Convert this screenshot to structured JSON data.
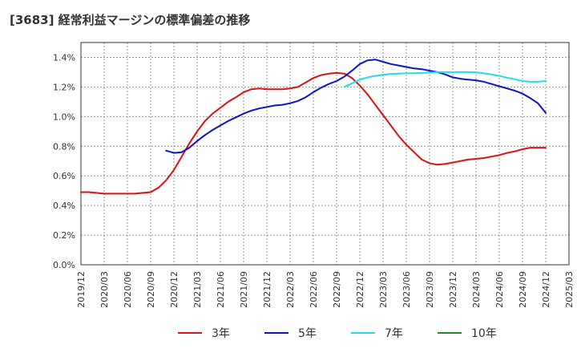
{
  "chart_data": {
    "type": "line",
    "title": "[3683]  経常利益マージンの標準偏差の推移",
    "xlabel": "",
    "ylabel": "",
    "x_tick_labels": [
      "2019/12",
      "2020/03",
      "2020/06",
      "2020/09",
      "2020/12",
      "2021/03",
      "2021/06",
      "2021/09",
      "2021/12",
      "2022/03",
      "2022/06",
      "2022/09",
      "2022/12",
      "2023/03",
      "2023/06",
      "2023/09",
      "2023/12",
      "2024/03",
      "2024/06",
      "2024/09",
      "2024/12",
      "2025/03"
    ],
    "y_tick_labels": [
      "0.0%",
      "0.2%",
      "0.4%",
      "0.6%",
      "0.8%",
      "1.0%",
      "1.2%",
      "1.4%"
    ],
    "ylim": [
      0,
      1.5
    ],
    "grid": true,
    "legend_position": "bottom",
    "series": [
      {
        "name": "3年",
        "color": "#dd1111",
        "x": [
          "2019/12",
          "2020/01",
          "2020/02",
          "2020/03",
          "2020/04",
          "2020/05",
          "2020/06",
          "2020/07",
          "2020/08",
          "2020/09",
          "2020/10",
          "2020/11",
          "2020/12",
          "2021/01",
          "2021/02",
          "2021/03",
          "2021/04",
          "2021/05",
          "2021/06",
          "2021/07",
          "2021/08",
          "2021/09",
          "2021/10",
          "2021/11",
          "2021/12",
          "2022/01",
          "2022/02",
          "2022/03",
          "2022/04",
          "2022/05",
          "2022/06",
          "2022/07",
          "2022/08",
          "2022/09",
          "2022/10",
          "2022/11",
          "2022/12",
          "2023/01",
          "2023/02",
          "2023/03",
          "2023/04",
          "2023/05",
          "2023/06",
          "2023/07",
          "2023/08",
          "2023/09",
          "2023/10",
          "2023/11",
          "2023/12",
          "2024/01",
          "2024/02",
          "2024/03",
          "2024/04",
          "2024/05",
          "2024/06",
          "2024/07",
          "2024/08",
          "2024/09",
          "2024/10",
          "2024/11",
          "2024/12"
        ],
        "values": [
          0.49,
          0.49,
          0.485,
          0.48,
          0.48,
          0.48,
          0.48,
          0.48,
          0.485,
          0.49,
          0.52,
          0.57,
          0.64,
          0.73,
          0.82,
          0.9,
          0.97,
          1.02,
          1.06,
          1.1,
          1.13,
          1.165,
          1.185,
          1.19,
          1.185,
          1.185,
          1.185,
          1.19,
          1.2,
          1.23,
          1.26,
          1.28,
          1.29,
          1.295,
          1.29,
          1.26,
          1.21,
          1.15,
          1.08,
          1.01,
          0.94,
          0.87,
          0.81,
          0.76,
          0.71,
          0.685,
          0.675,
          0.68,
          0.69,
          0.7,
          0.71,
          0.715,
          0.72,
          0.73,
          0.74,
          0.755,
          0.765,
          0.78,
          0.79,
          0.79,
          0.79
        ]
      },
      {
        "name": "5年",
        "color": "#0a14cc",
        "x": [
          "2020/11",
          "2020/12",
          "2021/01",
          "2021/02",
          "2021/03",
          "2021/04",
          "2021/05",
          "2021/06",
          "2021/07",
          "2021/08",
          "2021/09",
          "2021/10",
          "2021/11",
          "2021/12",
          "2022/01",
          "2022/02",
          "2022/03",
          "2022/04",
          "2022/05",
          "2022/06",
          "2022/07",
          "2022/08",
          "2022/09",
          "2022/10",
          "2022/11",
          "2022/12",
          "2023/01",
          "2023/02",
          "2023/03",
          "2023/04",
          "2023/05",
          "2023/06",
          "2023/07",
          "2023/08",
          "2023/09",
          "2023/10",
          "2023/11",
          "2023/12",
          "2024/01",
          "2024/02",
          "2024/03",
          "2024/04",
          "2024/05",
          "2024/06",
          "2024/07",
          "2024/08",
          "2024/09",
          "2024/10",
          "2024/11",
          "2024/12"
        ],
        "values": [
          0.77,
          0.755,
          0.76,
          0.79,
          0.835,
          0.875,
          0.91,
          0.94,
          0.97,
          0.995,
          1.02,
          1.04,
          1.055,
          1.065,
          1.075,
          1.08,
          1.09,
          1.105,
          1.13,
          1.165,
          1.195,
          1.22,
          1.24,
          1.27,
          1.31,
          1.355,
          1.38,
          1.385,
          1.37,
          1.355,
          1.345,
          1.335,
          1.325,
          1.32,
          1.31,
          1.3,
          1.285,
          1.265,
          1.255,
          1.25,
          1.245,
          1.235,
          1.22,
          1.205,
          1.19,
          1.175,
          1.155,
          1.125,
          1.09,
          1.025
        ]
      },
      {
        "name": "7年",
        "color": "#22dde8",
        "x": [
          "2022/10",
          "2022/11",
          "2022/12",
          "2023/01",
          "2023/02",
          "2023/03",
          "2023/04",
          "2023/05",
          "2023/06",
          "2023/07",
          "2023/08",
          "2023/09",
          "2023/10",
          "2023/11",
          "2023/12",
          "2024/01",
          "2024/02",
          "2024/03",
          "2024/04",
          "2024/05",
          "2024/06",
          "2024/07",
          "2024/08",
          "2024/09",
          "2024/10",
          "2024/11",
          "2024/12"
        ],
        "values": [
          1.2,
          1.225,
          1.25,
          1.265,
          1.275,
          1.282,
          1.288,
          1.29,
          1.292,
          1.293,
          1.295,
          1.297,
          1.3,
          1.3,
          1.3,
          1.3,
          1.3,
          1.298,
          1.292,
          1.285,
          1.275,
          1.263,
          1.252,
          1.24,
          1.235,
          1.235,
          1.24
        ]
      },
      {
        "name": "10年",
        "color": "#228b22",
        "x": [],
        "values": []
      }
    ]
  }
}
